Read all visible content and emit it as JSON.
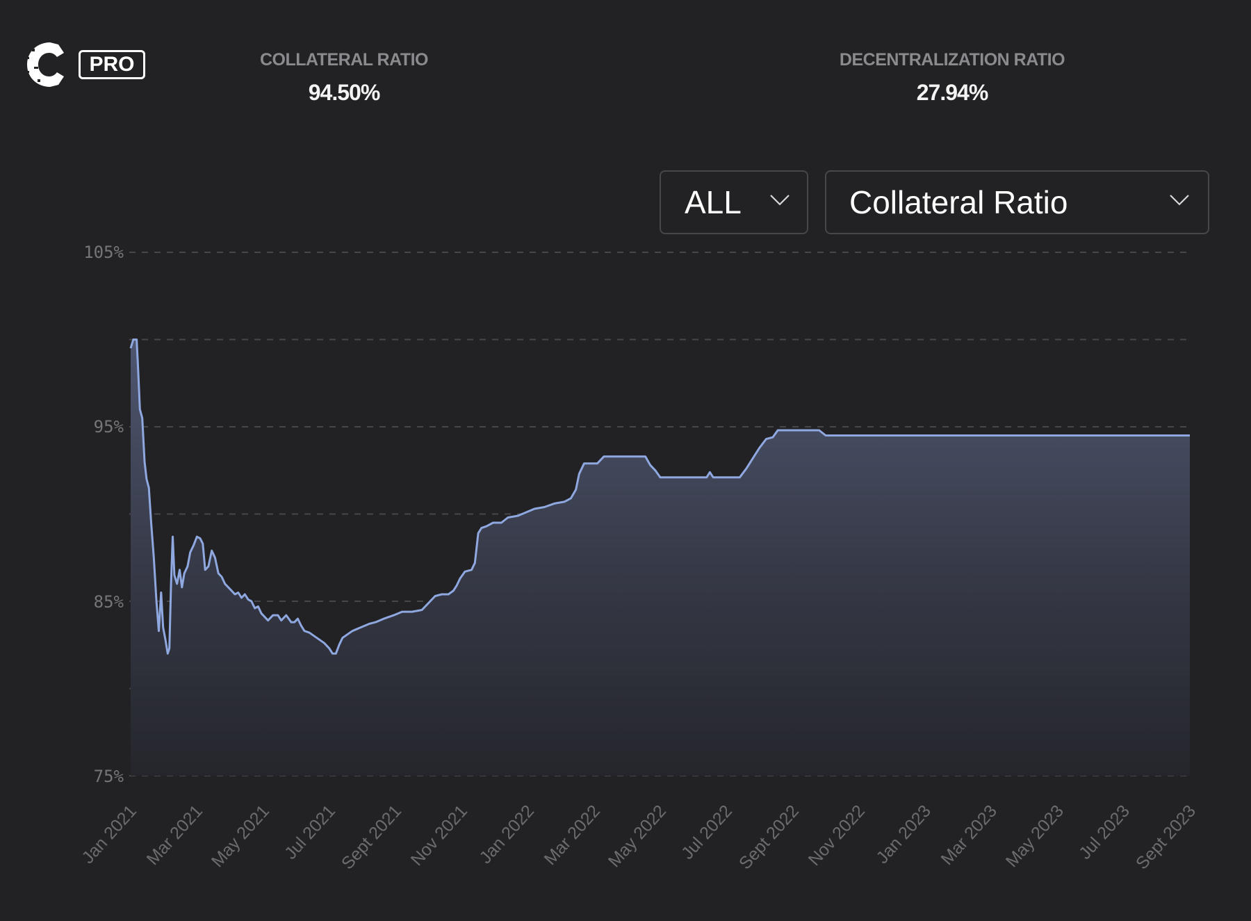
{
  "header": {
    "logo_letter": "C",
    "badge": "PRO"
  },
  "stats": {
    "collateral": {
      "label": "COLLATERAL RATIO",
      "value": "94.50%"
    },
    "decentralization": {
      "label": "DECENTRALIZATION RATIO",
      "value": "27.94%"
    }
  },
  "controls": {
    "range_select": {
      "value": "ALL",
      "icon": "chevron-down-icon"
    },
    "metric_select": {
      "value": "Collateral Ratio",
      "icon": "chevron-down-icon"
    }
  },
  "colors": {
    "background": "#222225",
    "line": "#8fa8e0",
    "area_top": "#4a5267",
    "area_bottom": "#25262b",
    "grid": "#4a4a50",
    "tick_text": "#6b6b70"
  },
  "chart_data": {
    "type": "area",
    "title": "Collateral Ratio",
    "xlabel": "",
    "ylabel": "",
    "ylim": [
      75,
      105
    ],
    "y_ticks": [
      "105%",
      "95%",
      "85%",
      "75%"
    ],
    "grid": true,
    "grid_style": "dashed",
    "legend": null,
    "x_ticks": [
      "Jan 2021",
      "Mar 2021",
      "May 2021",
      "Jul 2021",
      "Sept 2021",
      "Nov 2021",
      "Jan 2022",
      "Mar 2022",
      "May 2022",
      "Jul 2022",
      "Sept 2022",
      "Nov 2022",
      "Jan 2023",
      "Mar 2023",
      "May 2023",
      "Jul 2023",
      "Sept 2023"
    ],
    "x_range_months": [
      0,
      32
    ],
    "points": [
      [
        0.0,
        99.5
      ],
      [
        0.08,
        100.0
      ],
      [
        0.18,
        100.0
      ],
      [
        0.22,
        98.5
      ],
      [
        0.28,
        96.0
      ],
      [
        0.35,
        95.5
      ],
      [
        0.42,
        93.0
      ],
      [
        0.48,
        92.0
      ],
      [
        0.55,
        91.5
      ],
      [
        0.62,
        89.5
      ],
      [
        0.7,
        87.5
      ],
      [
        0.78,
        85.0
      ],
      [
        0.85,
        83.3
      ],
      [
        0.92,
        85.5
      ],
      [
        0.98,
        83.5
      ],
      [
        1.05,
        82.8
      ],
      [
        1.12,
        82.0
      ],
      [
        1.17,
        82.3
      ],
      [
        1.22,
        86.0
      ],
      [
        1.27,
        88.7
      ],
      [
        1.32,
        86.5
      ],
      [
        1.4,
        86.0
      ],
      [
        1.48,
        86.8
      ],
      [
        1.55,
        85.8
      ],
      [
        1.62,
        86.6
      ],
      [
        1.72,
        87.0
      ],
      [
        1.8,
        87.8
      ],
      [
        1.9,
        88.2
      ],
      [
        2.0,
        88.7
      ],
      [
        2.1,
        88.6
      ],
      [
        2.18,
        88.3
      ],
      [
        2.25,
        86.8
      ],
      [
        2.35,
        87.0
      ],
      [
        2.45,
        87.9
      ],
      [
        2.55,
        87.5
      ],
      [
        2.65,
        86.6
      ],
      [
        2.75,
        86.4
      ],
      [
        2.85,
        86.0
      ],
      [
        2.95,
        85.8
      ],
      [
        3.05,
        85.6
      ],
      [
        3.15,
        85.4
      ],
      [
        3.25,
        85.5
      ],
      [
        3.35,
        85.2
      ],
      [
        3.45,
        85.4
      ],
      [
        3.55,
        85.1
      ],
      [
        3.65,
        85.0
      ],
      [
        3.75,
        84.6
      ],
      [
        3.85,
        84.7
      ],
      [
        3.95,
        84.3
      ],
      [
        4.05,
        84.1
      ],
      [
        4.15,
        83.9
      ],
      [
        4.3,
        84.2
      ],
      [
        4.45,
        84.2
      ],
      [
        4.55,
        83.9
      ],
      [
        4.7,
        84.2
      ],
      [
        4.85,
        83.8
      ],
      [
        4.95,
        83.8
      ],
      [
        5.05,
        84.0
      ],
      [
        5.15,
        83.6
      ],
      [
        5.25,
        83.3
      ],
      [
        5.4,
        83.2
      ],
      [
        5.55,
        83.0
      ],
      [
        5.7,
        82.8
      ],
      [
        5.85,
        82.6
      ],
      [
        6.0,
        82.3
      ],
      [
        6.1,
        82.0
      ],
      [
        6.2,
        82.0
      ],
      [
        6.3,
        82.5
      ],
      [
        6.4,
        82.9
      ],
      [
        6.55,
        83.1
      ],
      [
        6.7,
        83.3
      ],
      [
        6.95,
        83.5
      ],
      [
        7.2,
        83.7
      ],
      [
        7.4,
        83.8
      ],
      [
        7.65,
        84.0
      ],
      [
        7.95,
        84.2
      ],
      [
        8.2,
        84.4
      ],
      [
        8.5,
        84.4
      ],
      [
        8.8,
        84.5
      ],
      [
        9.0,
        84.9
      ],
      [
        9.2,
        85.3
      ],
      [
        9.4,
        85.4
      ],
      [
        9.6,
        85.4
      ],
      [
        9.75,
        85.6
      ],
      [
        9.85,
        85.9
      ],
      [
        9.95,
        86.3
      ],
      [
        10.1,
        86.7
      ],
      [
        10.3,
        86.8
      ],
      [
        10.4,
        87.2
      ],
      [
        10.5,
        88.9
      ],
      [
        10.6,
        89.2
      ],
      [
        10.75,
        89.3
      ],
      [
        10.95,
        89.5
      ],
      [
        11.2,
        89.5
      ],
      [
        11.4,
        89.8
      ],
      [
        11.7,
        89.9
      ],
      [
        11.95,
        90.1
      ],
      [
        12.2,
        90.3
      ],
      [
        12.5,
        90.4
      ],
      [
        12.8,
        90.6
      ],
      [
        13.1,
        90.7
      ],
      [
        13.3,
        90.9
      ],
      [
        13.45,
        91.4
      ],
      [
        13.55,
        92.3
      ],
      [
        13.7,
        92.9
      ],
      [
        14.1,
        92.9
      ],
      [
        14.3,
        93.3
      ],
      [
        14.8,
        93.3
      ],
      [
        15.35,
        93.3
      ],
      [
        15.55,
        93.3
      ],
      [
        15.7,
        92.8
      ],
      [
        15.85,
        92.5
      ],
      [
        16.0,
        92.1
      ],
      [
        16.5,
        92.1
      ],
      [
        17.0,
        92.1
      ],
      [
        17.4,
        92.1
      ],
      [
        17.5,
        92.4
      ],
      [
        17.6,
        92.1
      ],
      [
        18.0,
        92.1
      ],
      [
        18.4,
        92.1
      ],
      [
        18.6,
        92.6
      ],
      [
        18.8,
        93.2
      ],
      [
        19.0,
        93.8
      ],
      [
        19.2,
        94.3
      ],
      [
        19.4,
        94.4
      ],
      [
        19.55,
        94.8
      ],
      [
        20.0,
        94.8
      ],
      [
        20.8,
        94.8
      ],
      [
        21.0,
        94.5
      ],
      [
        22.0,
        94.5
      ],
      [
        23.0,
        94.5
      ],
      [
        24.0,
        94.5
      ],
      [
        25.0,
        94.5
      ],
      [
        26.0,
        94.5
      ],
      [
        27.0,
        94.5
      ],
      [
        28.0,
        94.5
      ],
      [
        29.0,
        94.5
      ],
      [
        30.0,
        94.5
      ],
      [
        31.0,
        94.5
      ],
      [
        32.0,
        94.5
      ]
    ]
  }
}
